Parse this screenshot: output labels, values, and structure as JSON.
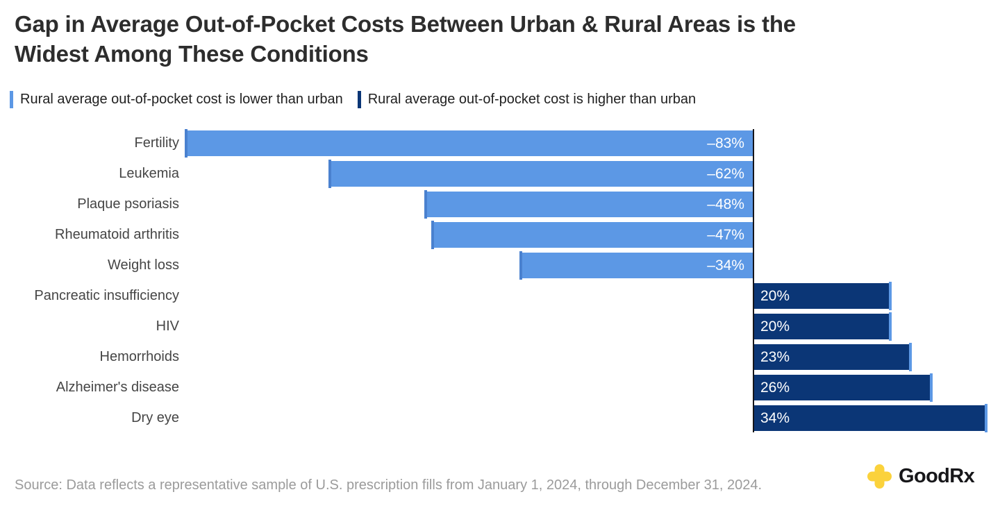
{
  "header": {
    "title_line1": "Gap in Average Out-of-Pocket Costs Between Urban & Rural Areas is the",
    "title_line2": "Widest Among These Conditions"
  },
  "legend": {
    "items": [
      {
        "label": "Rural average out-of-pocket cost is lower than urban",
        "color": "#5C98E5"
      },
      {
        "label": "Rural average out-of-pocket cost is higher than urban",
        "color": "#0B3676"
      }
    ]
  },
  "chart_data": {
    "type": "bar",
    "orientation": "horizontal",
    "title": "Gap in Average Out-of-Pocket Costs Between Urban & Rural Areas is the Widest Among These Conditions",
    "categories": [
      "Fertility",
      "Leukemia",
      "Plaque psoriasis",
      "Rheumatoid arthritis",
      "Weight loss",
      "Pancreatic insufficiency",
      "HIV",
      "Hemorrhoids",
      "Alzheimer's disease",
      "Dry eye"
    ],
    "values": [
      -83,
      -62,
      -48,
      -47,
      -34,
      20,
      20,
      23,
      26,
      34
    ],
    "value_labels": [
      "–83%",
      "–62%",
      "–48%",
      "–47%",
      "–34%",
      "20%",
      "20%",
      "23%",
      "26%",
      "34%"
    ],
    "unit": "%",
    "xlim": [
      -83,
      34
    ],
    "grid": false,
    "legend_position": "top",
    "colors": {
      "negative_bar": "#5C98E5",
      "negative_cap": "#4A81CF",
      "positive_bar": "#0B3676",
      "positive_cap": "#5C98E5",
      "zero_line": "#15151A",
      "value_text": "#FFFFFF"
    }
  },
  "footer": {
    "source": "Source: Data reflects a representative sample of U.S. prescription fills from January 1, 2024, through December 31, 2024.",
    "logo": {
      "wordmark": "GoodRx",
      "cross_color": "#FBD23C"
    }
  }
}
